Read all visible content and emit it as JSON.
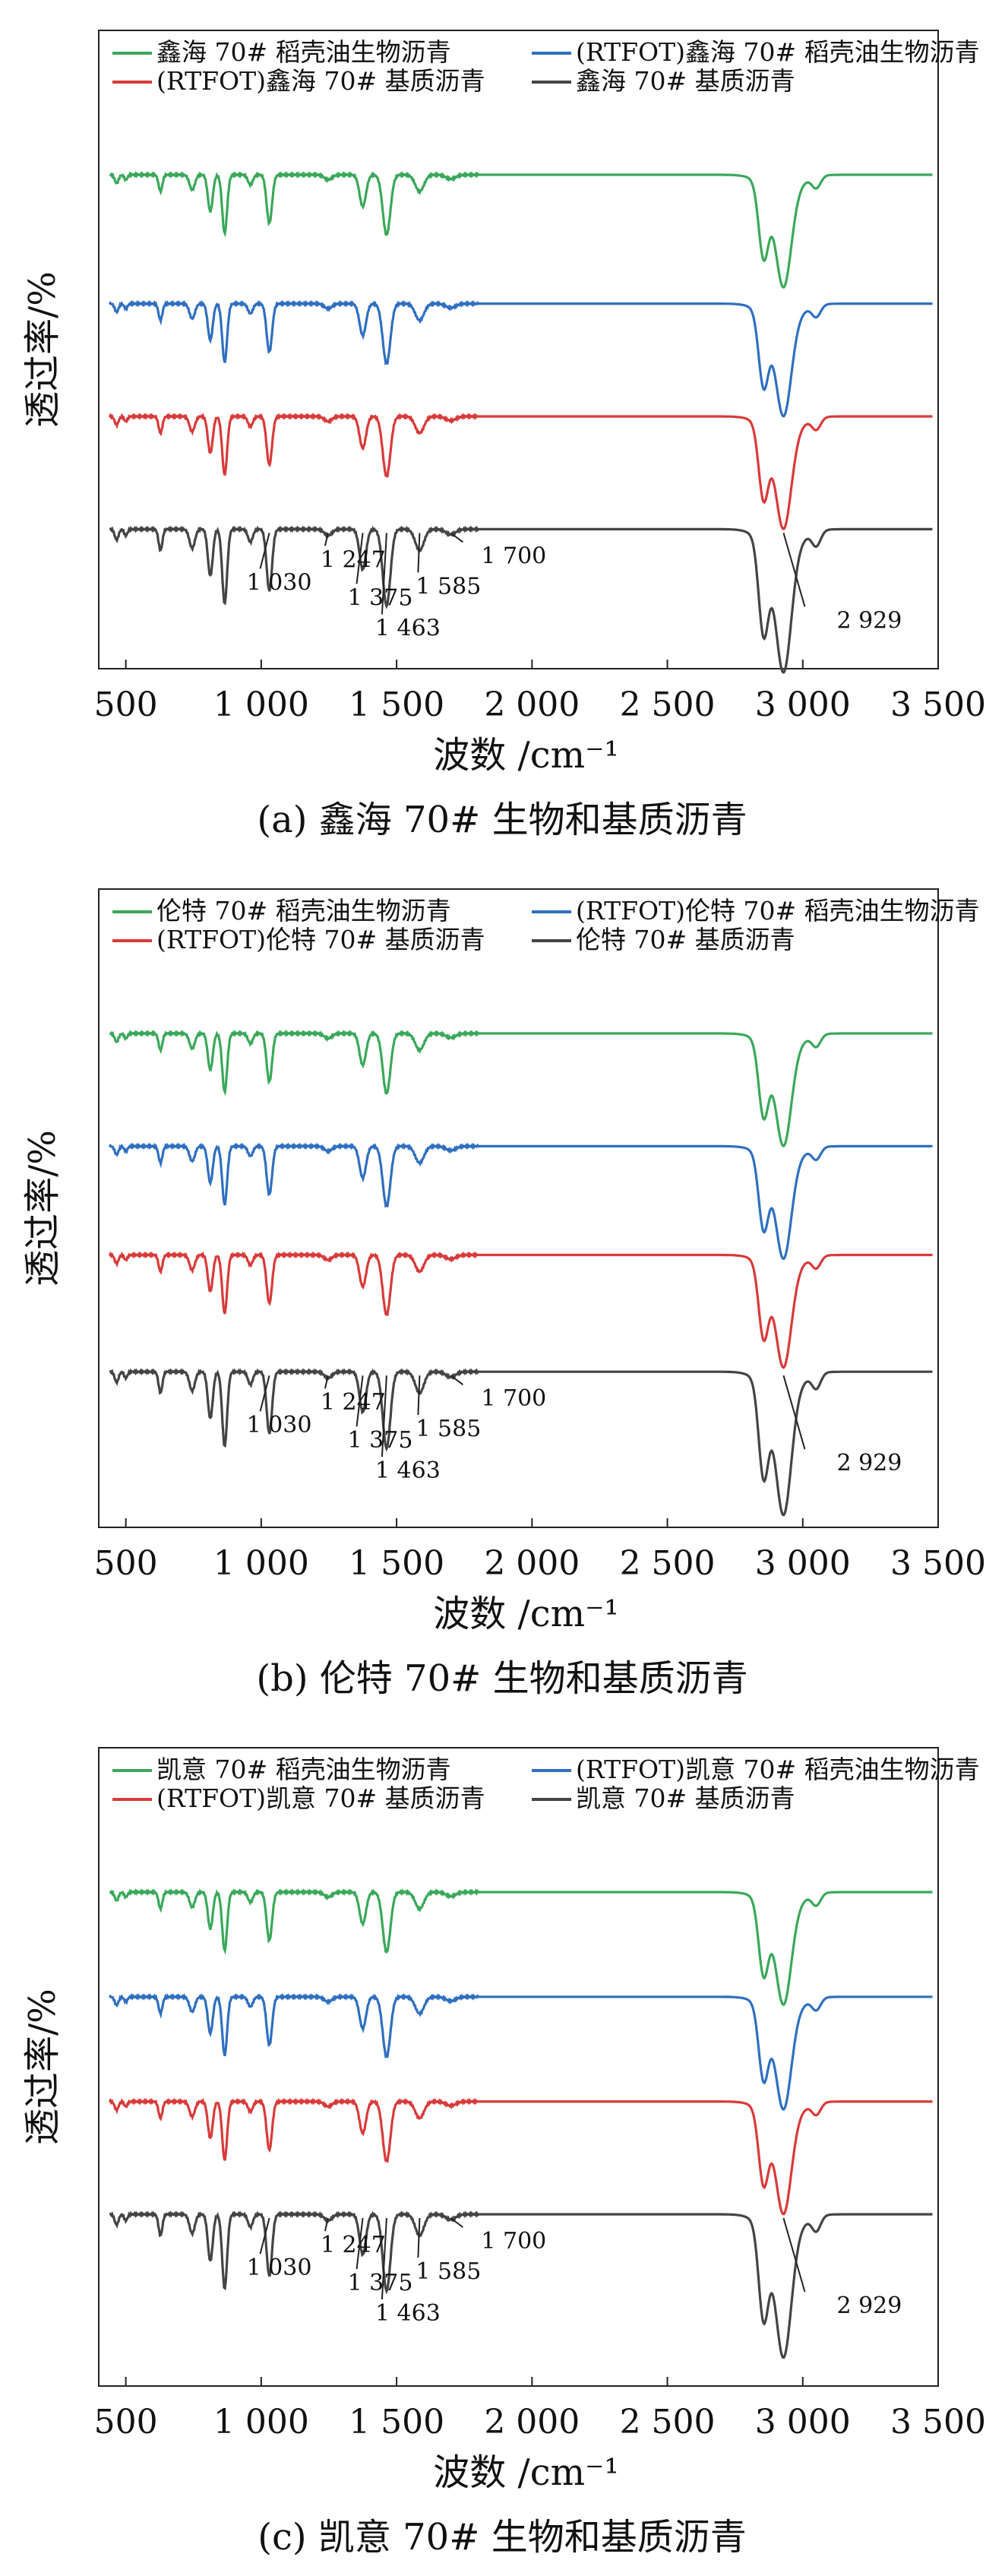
{
  "chart_data": [
    {
      "type": "line",
      "caption": "(a) 鑫海 70# 生物和基质沥青",
      "xlabel": "波数 /cm⁻¹",
      "ylabel": "透过率/%",
      "xlim": [
        400,
        3500
      ],
      "x_ticks": [
        500,
        1000,
        1500,
        2000,
        2500,
        3000,
        3500
      ],
      "x_tick_labels": [
        "500",
        "1 000",
        "1 500",
        "2 000",
        "2 500",
        "3 000",
        "3 500"
      ],
      "legend_position": "top",
      "series": [
        {
          "name": "鑫海 70# 稻壳油生物沥青",
          "color": "#3aa85a",
          "baseline": 1.0
        },
        {
          "name": "(RTFOT)鑫海 70# 稻壳油生物沥青",
          "color": "#2f6fc0",
          "baseline": 0.68
        },
        {
          "name": "(RTFOT)鑫海 70# 基质沥青",
          "color": "#d93a3a",
          "baseline": 0.4
        },
        {
          "name": "鑫海 70# 基质沥青",
          "color": "#444444",
          "baseline": 0.12
        }
      ],
      "annotations": [
        {
          "text": "1 030",
          "x": 1030
        },
        {
          "text": "1 247",
          "x": 1247
        },
        {
          "text": "1 375",
          "x": 1375
        },
        {
          "text": "1 463",
          "x": 1463
        },
        {
          "text": "1 585",
          "x": 1585
        },
        {
          "text": "1 700",
          "x": 1700
        },
        {
          "text": "2 929",
          "x": 2929
        }
      ]
    },
    {
      "type": "line",
      "caption": "(b) 伦特 70# 生物和基质沥青",
      "xlabel": "波数 /cm⁻¹",
      "ylabel": "透过率/%",
      "xlim": [
        400,
        3500
      ],
      "x_ticks": [
        500,
        1000,
        1500,
        2000,
        2500,
        3000,
        3500
      ],
      "x_tick_labels": [
        "500",
        "1 000",
        "1 500",
        "2 000",
        "2 500",
        "3 000",
        "3 500"
      ],
      "legend_position": "top",
      "series": [
        {
          "name": "伦特 70# 稻壳油生物沥青",
          "color": "#3aa85a",
          "baseline": 1.0
        },
        {
          "name": "(RTFOT)伦特 70# 稻壳油生物沥青",
          "color": "#2f6fc0",
          "baseline": 0.72
        },
        {
          "name": "(RTFOT)伦特 70# 基质沥青",
          "color": "#d93a3a",
          "baseline": 0.45
        },
        {
          "name": "伦特 70# 基质沥青",
          "color": "#444444",
          "baseline": 0.16
        }
      ],
      "annotations": [
        {
          "text": "1 030",
          "x": 1030
        },
        {
          "text": "1 247",
          "x": 1247
        },
        {
          "text": "1 375",
          "x": 1375
        },
        {
          "text": "1 463",
          "x": 1463
        },
        {
          "text": "1 585",
          "x": 1585
        },
        {
          "text": "1 700",
          "x": 1700
        },
        {
          "text": "2 929",
          "x": 2929
        }
      ]
    },
    {
      "type": "line",
      "caption": "(c) 凯意 70# 生物和基质沥青",
      "xlabel": "波数 /cm⁻¹",
      "ylabel": "透过率/%",
      "xlim": [
        400,
        3500
      ],
      "x_ticks": [
        500,
        1000,
        1500,
        2000,
        2500,
        3000,
        3500
      ],
      "x_tick_labels": [
        "500",
        "1 000",
        "1 500",
        "2 000",
        "2 500",
        "3 000",
        "3 500"
      ],
      "legend_position": "top",
      "series": [
        {
          "name": "凯意 70# 稻壳油生物沥青",
          "color": "#3aa85a",
          "baseline": 1.0
        },
        {
          "name": "(RTFOT)凯意 70# 稻壳油生物沥青",
          "color": "#2f6fc0",
          "baseline": 0.74
        },
        {
          "name": "(RTFOT)凯意 70# 基质沥青",
          "color": "#d93a3a",
          "baseline": 0.48
        },
        {
          "name": "凯意 70# 基质沥青",
          "color": "#444444",
          "baseline": 0.2
        }
      ],
      "annotations": [
        {
          "text": "1 030",
          "x": 1030
        },
        {
          "text": "1 247",
          "x": 1247
        },
        {
          "text": "1 375",
          "x": 1375
        },
        {
          "text": "1 463",
          "x": 1463
        },
        {
          "text": "1 585",
          "x": 1585
        },
        {
          "text": "1 700",
          "x": 1700
        },
        {
          "text": "2 929",
          "x": 2929
        }
      ]
    }
  ]
}
